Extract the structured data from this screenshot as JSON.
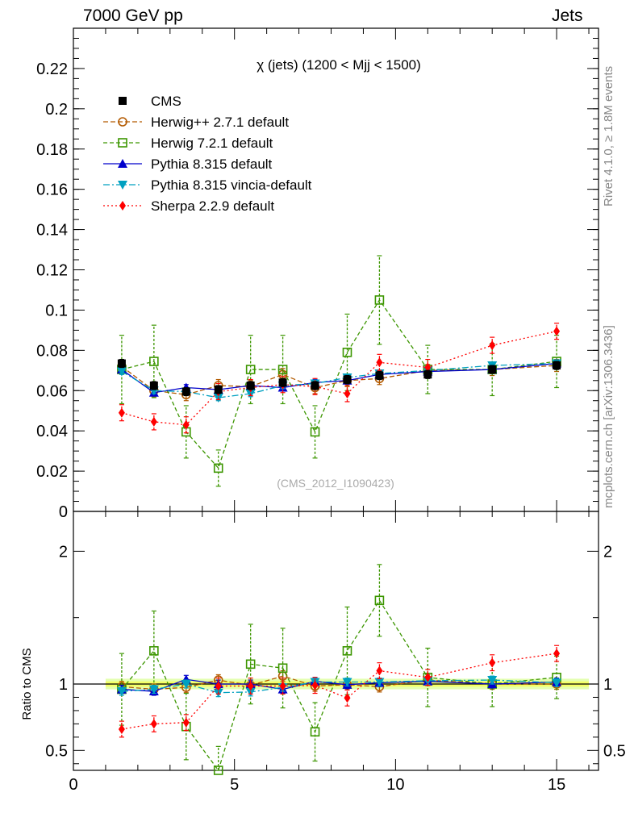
{
  "header": {
    "left": "7000 GeV pp",
    "right": "Jets"
  },
  "side_labels": {
    "rivet": "Rivet 4.1.0, ≥ 1.8M events",
    "source": "mcplots.cern.ch [arXiv:1306.3436]"
  },
  "colors": {
    "cms": "#000000",
    "herwigpp": "#b35a00",
    "herwig7": "#3c9600",
    "pythia": "#0000cc",
    "vincia": "#00a0c0",
    "sherpa": "#ff0000",
    "band_inner": "#f5ff66",
    "band_outer": "#e4ffb0"
  },
  "chart_data": [
    {
      "type": "line",
      "title": "χ (jets) (1200 < Mjj < 1500)",
      "watermark": "(CMS_2012_I1090423)",
      "xlabel": "",
      "ylabel": "",
      "xlim": [
        0,
        16.3
      ],
      "ylim": [
        0,
        0.24
      ],
      "xticks": [
        0,
        5,
        10,
        15
      ],
      "yticks": [
        0,
        0.02,
        0.04,
        0.06,
        0.08,
        0.1,
        0.12,
        0.14,
        0.16,
        0.18,
        0.2,
        0.22
      ],
      "ytick_labels": [
        "0",
        "0.02",
        "0.04",
        "0.06",
        "0.08",
        "0.1",
        "0.12",
        "0.14",
        "0.16",
        "0.18",
        "0.2",
        "0.22"
      ],
      "x": [
        1.5,
        2.5,
        3.5,
        4.5,
        5.5,
        6.5,
        7.5,
        8.5,
        9.5,
        11,
        13,
        15
      ],
      "bin_edges": [
        1,
        2,
        3,
        4,
        5,
        6,
        7,
        8,
        9,
        10,
        12,
        14,
        16
      ],
      "legend": [
        "CMS",
        "Herwig++ 2.7.1 default",
        "Herwig 7.2.1 default",
        "Pythia 8.315 default",
        "Pythia 8.315 vincia-default",
        "Sherpa 2.2.9 default"
      ],
      "series": [
        {
          "name": "CMS",
          "marker": "square",
          "values": [
            0.0735,
            0.0625,
            0.0595,
            0.0605,
            0.0625,
            0.064,
            0.0625,
            0.0655,
            0.0675,
            0.068,
            0.0705,
            0.0725
          ],
          "errors": [
            0.002,
            0.002,
            0.002,
            0.002,
            0.002,
            0.002,
            0.002,
            0.002,
            0.002,
            0.002,
            0.002,
            0.002
          ]
        },
        {
          "name": "Herwig++ 2.7.1 default",
          "marker": "open-circle",
          "style": "dashed",
          "values": [
            0.072,
            0.06,
            0.058,
            0.0625,
            0.062,
            0.068,
            0.0615,
            0.065,
            0.066,
            0.07,
            0.0705,
            0.0725
          ],
          "errors": [
            0.003,
            0.003,
            0.003,
            0.003,
            0.003,
            0.003,
            0.003,
            0.003,
            0.003,
            0.003,
            0.003,
            0.003
          ]
        },
        {
          "name": "Herwig 7.2.1 default",
          "marker": "open-square",
          "style": "dashed",
          "values": [
            0.0705,
            0.0745,
            0.0395,
            0.0215,
            0.0705,
            0.0705,
            0.0395,
            0.079,
            0.105,
            0.0705,
            0.0705,
            0.0745
          ],
          "errors": [
            0.017,
            0.018,
            0.013,
            0.009,
            0.017,
            0.017,
            0.013,
            0.019,
            0.022,
            0.012,
            0.013,
            0.013
          ]
        },
        {
          "name": "Pythia 8.315 default",
          "marker": "triangle-up",
          "style": "solid",
          "values": [
            0.0705,
            0.059,
            0.0615,
            0.0605,
            0.0625,
            0.0615,
            0.064,
            0.065,
            0.068,
            0.0695,
            0.0705,
            0.0735
          ],
          "errors": [
            0.0015,
            0.0015,
            0.0015,
            0.0015,
            0.0015,
            0.0015,
            0.0015,
            0.0015,
            0.0015,
            0.0015,
            0.0015,
            0.0015
          ]
        },
        {
          "name": "Pythia 8.315 vincia-default",
          "marker": "triangle-down",
          "style": "dashdot",
          "values": [
            0.0695,
            0.06,
            0.0595,
            0.0565,
            0.0585,
            0.0625,
            0.0635,
            0.0665,
            0.0685,
            0.07,
            0.0725,
            0.0735
          ],
          "errors": [
            0.0015,
            0.0015,
            0.0015,
            0.0015,
            0.0015,
            0.0015,
            0.0015,
            0.0015,
            0.0015,
            0.0015,
            0.0015,
            0.0015
          ]
        },
        {
          "name": "Sherpa 2.2.9 default",
          "marker": "diamond",
          "style": "dotted",
          "values": [
            0.049,
            0.0445,
            0.043,
            0.0595,
            0.0615,
            0.063,
            0.062,
            0.0585,
            0.074,
            0.0715,
            0.0825,
            0.0895
          ],
          "errors": [
            0.004,
            0.004,
            0.004,
            0.004,
            0.004,
            0.004,
            0.004,
            0.004,
            0.004,
            0.004,
            0.004,
            0.004
          ]
        }
      ]
    },
    {
      "type": "line",
      "title": "",
      "ylabel": "Ratio to CMS",
      "xlim": [
        0,
        16.3
      ],
      "ylim": [
        0.35,
        2.3
      ],
      "xticks": [
        0,
        5,
        10,
        15
      ],
      "xtick_labels": [
        "0",
        "5",
        "10",
        "15"
      ],
      "yticks": [
        0.5,
        1,
        2
      ],
      "ytick_labels": [
        "0.5",
        "1",
        "2"
      ],
      "x": [
        1.5,
        2.5,
        3.5,
        4.5,
        5.5,
        6.5,
        7.5,
        8.5,
        9.5,
        11,
        13,
        15
      ],
      "band": {
        "inner": [
          0.98,
          1.02
        ],
        "outer": [
          0.96,
          1.04
        ],
        "xrange": [
          1,
          16
        ]
      },
      "series": [
        {
          "name": "Herwig++ 2.7.1 default",
          "values": [
            0.98,
            0.96,
            0.975,
            1.03,
            0.99,
            1.06,
            0.985,
            0.995,
            0.98,
            1.03,
            1.0,
            1.0
          ],
          "errors": [
            0.04,
            0.04,
            0.04,
            0.04,
            0.04,
            0.04,
            0.04,
            0.04,
            0.04,
            0.04,
            0.04,
            0.04
          ]
        },
        {
          "name": "Herwig 7.2.1 default",
          "values": [
            0.96,
            1.25,
            0.68,
            0.35,
            1.15,
            1.12,
            0.64,
            1.25,
            1.63,
            1.05,
            1.0,
            1.05
          ],
          "errors": [
            0.27,
            0.3,
            0.25,
            0.18,
            0.3,
            0.3,
            0.22,
            0.33,
            0.27,
            0.22,
            0.17,
            0.16
          ]
        },
        {
          "name": "Pythia 8.315 default",
          "values": [
            0.96,
            0.945,
            1.035,
            1.0,
            1.0,
            0.96,
            1.02,
            0.995,
            1.01,
            1.02,
            1.0,
            1.015
          ],
          "errors": [
            0.03,
            0.03,
            0.03,
            0.03,
            0.03,
            0.03,
            0.03,
            0.03,
            0.03,
            0.03,
            0.03,
            0.03
          ]
        },
        {
          "name": "Pythia 8.315 vincia-default",
          "values": [
            0.945,
            0.96,
            1.0,
            0.935,
            0.94,
            0.975,
            1.015,
            1.015,
            1.015,
            1.025,
            1.03,
            1.01
          ],
          "errors": [
            0.03,
            0.03,
            0.03,
            0.03,
            0.03,
            0.03,
            0.03,
            0.03,
            0.03,
            0.03,
            0.03,
            0.03
          ]
        },
        {
          "name": "Sherpa 2.2.9 default",
          "values": [
            0.66,
            0.7,
            0.71,
            0.985,
            0.985,
            0.985,
            0.99,
            0.895,
            1.1,
            1.05,
            1.16,
            1.23
          ],
          "errors": [
            0.06,
            0.06,
            0.06,
            0.06,
            0.06,
            0.06,
            0.06,
            0.06,
            0.06,
            0.06,
            0.06,
            0.06
          ]
        }
      ]
    }
  ]
}
